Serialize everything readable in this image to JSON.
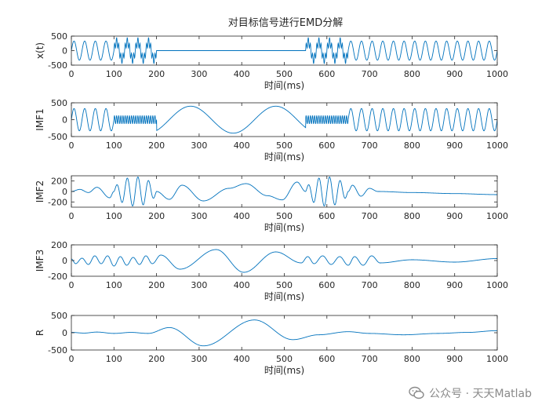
{
  "title": "对目标信号进行EMD分解",
  "watermark": "公众号 · 天天Matlab",
  "colors": {
    "signal": "#0072BD",
    "axes": "#262626",
    "text": "#262626"
  },
  "chart_data": [
    {
      "type": "line",
      "id": "xt",
      "ylabel": "x(t)",
      "xlabel": "时间(ms)",
      "xlim": [
        0,
        1000
      ],
      "ylim": [
        -500,
        500
      ],
      "yticks": [
        -500,
        0,
        500
      ],
      "xticks": [
        0,
        100,
        200,
        300,
        400,
        500,
        600,
        700,
        800,
        900,
        1000
      ],
      "segments": [
        {
          "from": 0,
          "to": 100,
          "components": [
            {
              "amp": 330,
              "period": 25
            }
          ]
        },
        {
          "from": 100,
          "to": 200,
          "components": [
            {
              "amp": 300,
              "period": 25
            },
            {
              "amp": 150,
              "period": 5
            }
          ]
        },
        {
          "from": 200,
          "to": 550,
          "components": []
        },
        {
          "from": 550,
          "to": 650,
          "components": [
            {
              "amp": 300,
              "period": 25
            },
            {
              "amp": 150,
              "period": 5
            }
          ]
        },
        {
          "from": 650,
          "to": 1000,
          "components": [
            {
              "amp": 330,
              "period": 25
            }
          ]
        }
      ]
    },
    {
      "type": "line",
      "id": "imf1",
      "ylabel": "IMF1",
      "xlabel": "时间(ms)",
      "xlim": [
        0,
        1000
      ],
      "ylim": [
        -500,
        500
      ],
      "yticks": [
        -500,
        0,
        500
      ],
      "xticks": [
        0,
        100,
        200,
        300,
        400,
        500,
        600,
        700,
        800,
        900,
        1000
      ],
      "segments": [
        {
          "from": 0,
          "to": 100,
          "components": [
            {
              "amp": 330,
              "period": 25
            }
          ]
        },
        {
          "from": 100,
          "to": 200,
          "components": [
            {
              "amp": 120,
              "period": 5
            }
          ]
        },
        {
          "from": 200,
          "to": 550,
          "components": [
            {
              "amp": 400,
              "period": 200,
              "phase": 230
            }
          ]
        },
        {
          "from": 550,
          "to": 650,
          "components": [
            {
              "amp": 120,
              "period": 5
            }
          ]
        },
        {
          "from": 650,
          "to": 1000,
          "components": [
            {
              "amp": 330,
              "period": 25
            }
          ]
        }
      ]
    },
    {
      "type": "line",
      "id": "imf2",
      "ylabel": "IMF2",
      "xlabel": "时间(ms)",
      "xlim": [
        0,
        1000
      ],
      "ylim": [
        -300,
        300
      ],
      "yticks": [
        -200,
        0,
        200
      ],
      "xticks": [
        0,
        100,
        200,
        300,
        400,
        500,
        600,
        700,
        800,
        900,
        1000
      ],
      "keypoints": [
        [
          0,
          0
        ],
        [
          20,
          40
        ],
        [
          40,
          -20
        ],
        [
          60,
          80
        ],
        [
          90,
          -120
        ],
        [
          100,
          0
        ],
        [
          200,
          0
        ],
        [
          230,
          -150
        ],
        [
          260,
          120
        ],
        [
          310,
          -180
        ],
        [
          370,
          60
        ],
        [
          410,
          150
        ],
        [
          460,
          -80
        ],
        [
          495,
          -160
        ],
        [
          530,
          180
        ],
        [
          550,
          0
        ],
        [
          650,
          0
        ],
        [
          660,
          120
        ],
        [
          680,
          -90
        ],
        [
          700,
          60
        ],
        [
          720,
          0
        ],
        [
          800,
          -20
        ],
        [
          900,
          -40
        ],
        [
          1000,
          -60
        ]
      ],
      "bursts": [
        {
          "from": 100,
          "to": 200,
          "amp": 280,
          "period": 25
        },
        {
          "from": 550,
          "to": 650,
          "amp": 280,
          "period": 25
        }
      ]
    },
    {
      "type": "line",
      "id": "imf3",
      "ylabel": "IMF3",
      "xlabel": "时间(ms)",
      "xlim": [
        0,
        1000
      ],
      "ylim": [
        -200,
        200
      ],
      "yticks": [
        -200,
        0,
        200
      ],
      "xticks": [
        0,
        100,
        200,
        300,
        400,
        500,
        600,
        700,
        800,
        900,
        1000
      ],
      "keypoints": [
        [
          0,
          20
        ],
        [
          10,
          -40
        ],
        [
          25,
          30
        ],
        [
          40,
          -50
        ],
        [
          55,
          60
        ],
        [
          70,
          -40
        ],
        [
          85,
          60
        ],
        [
          100,
          -70
        ],
        [
          115,
          50
        ],
        [
          130,
          -60
        ],
        [
          145,
          40
        ],
        [
          160,
          -50
        ],
        [
          175,
          60
        ],
        [
          190,
          -40
        ],
        [
          210,
          70
        ],
        [
          255,
          -110
        ],
        [
          340,
          140
        ],
        [
          405,
          -150
        ],
        [
          480,
          110
        ],
        [
          540,
          -30
        ],
        [
          555,
          50
        ],
        [
          570,
          -40
        ],
        [
          590,
          60
        ],
        [
          610,
          -50
        ],
        [
          630,
          50
        ],
        [
          650,
          -60
        ],
        [
          665,
          50
        ],
        [
          685,
          -60
        ],
        [
          705,
          60
        ],
        [
          725,
          -30
        ],
        [
          800,
          10
        ],
        [
          900,
          -20
        ],
        [
          1000,
          25
        ]
      ]
    },
    {
      "type": "line",
      "id": "residual",
      "ylabel": "R",
      "xlabel": "时间(ms)",
      "xlim": [
        0,
        1000
      ],
      "ylim": [
        -500,
        500
      ],
      "yticks": [
        -500,
        0,
        500
      ],
      "xticks": [
        0,
        100,
        200,
        300,
        400,
        500,
        600,
        700,
        800,
        900,
        1000
      ],
      "keypoints": [
        [
          0,
          10
        ],
        [
          30,
          -10
        ],
        [
          60,
          20
        ],
        [
          100,
          -20
        ],
        [
          140,
          10
        ],
        [
          180,
          -20
        ],
        [
          230,
          150
        ],
        [
          310,
          -380
        ],
        [
          430,
          370
        ],
        [
          520,
          -200
        ],
        [
          580,
          -60
        ],
        [
          650,
          30
        ],
        [
          700,
          -20
        ],
        [
          780,
          -60
        ],
        [
          860,
          -20
        ],
        [
          930,
          10
        ],
        [
          1000,
          60
        ]
      ]
    }
  ]
}
